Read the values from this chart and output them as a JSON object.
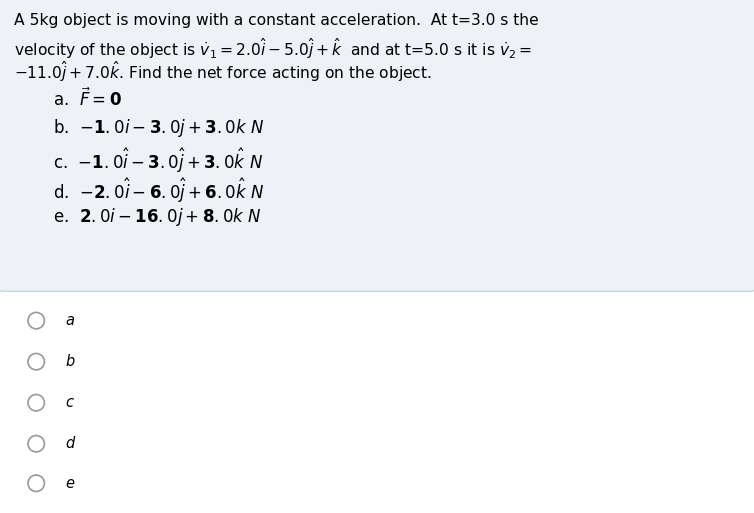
{
  "bg_color": "#ffffff",
  "box_bg": "#eef2f7",
  "box_edge": "#c8d4e0",
  "text_color": "#000000",
  "font_size_question": 11.2,
  "font_size_options": 12.0,
  "font_size_radio": 10.5,
  "radio_labels": [
    "a",
    "b",
    "c",
    "d",
    "e"
  ]
}
